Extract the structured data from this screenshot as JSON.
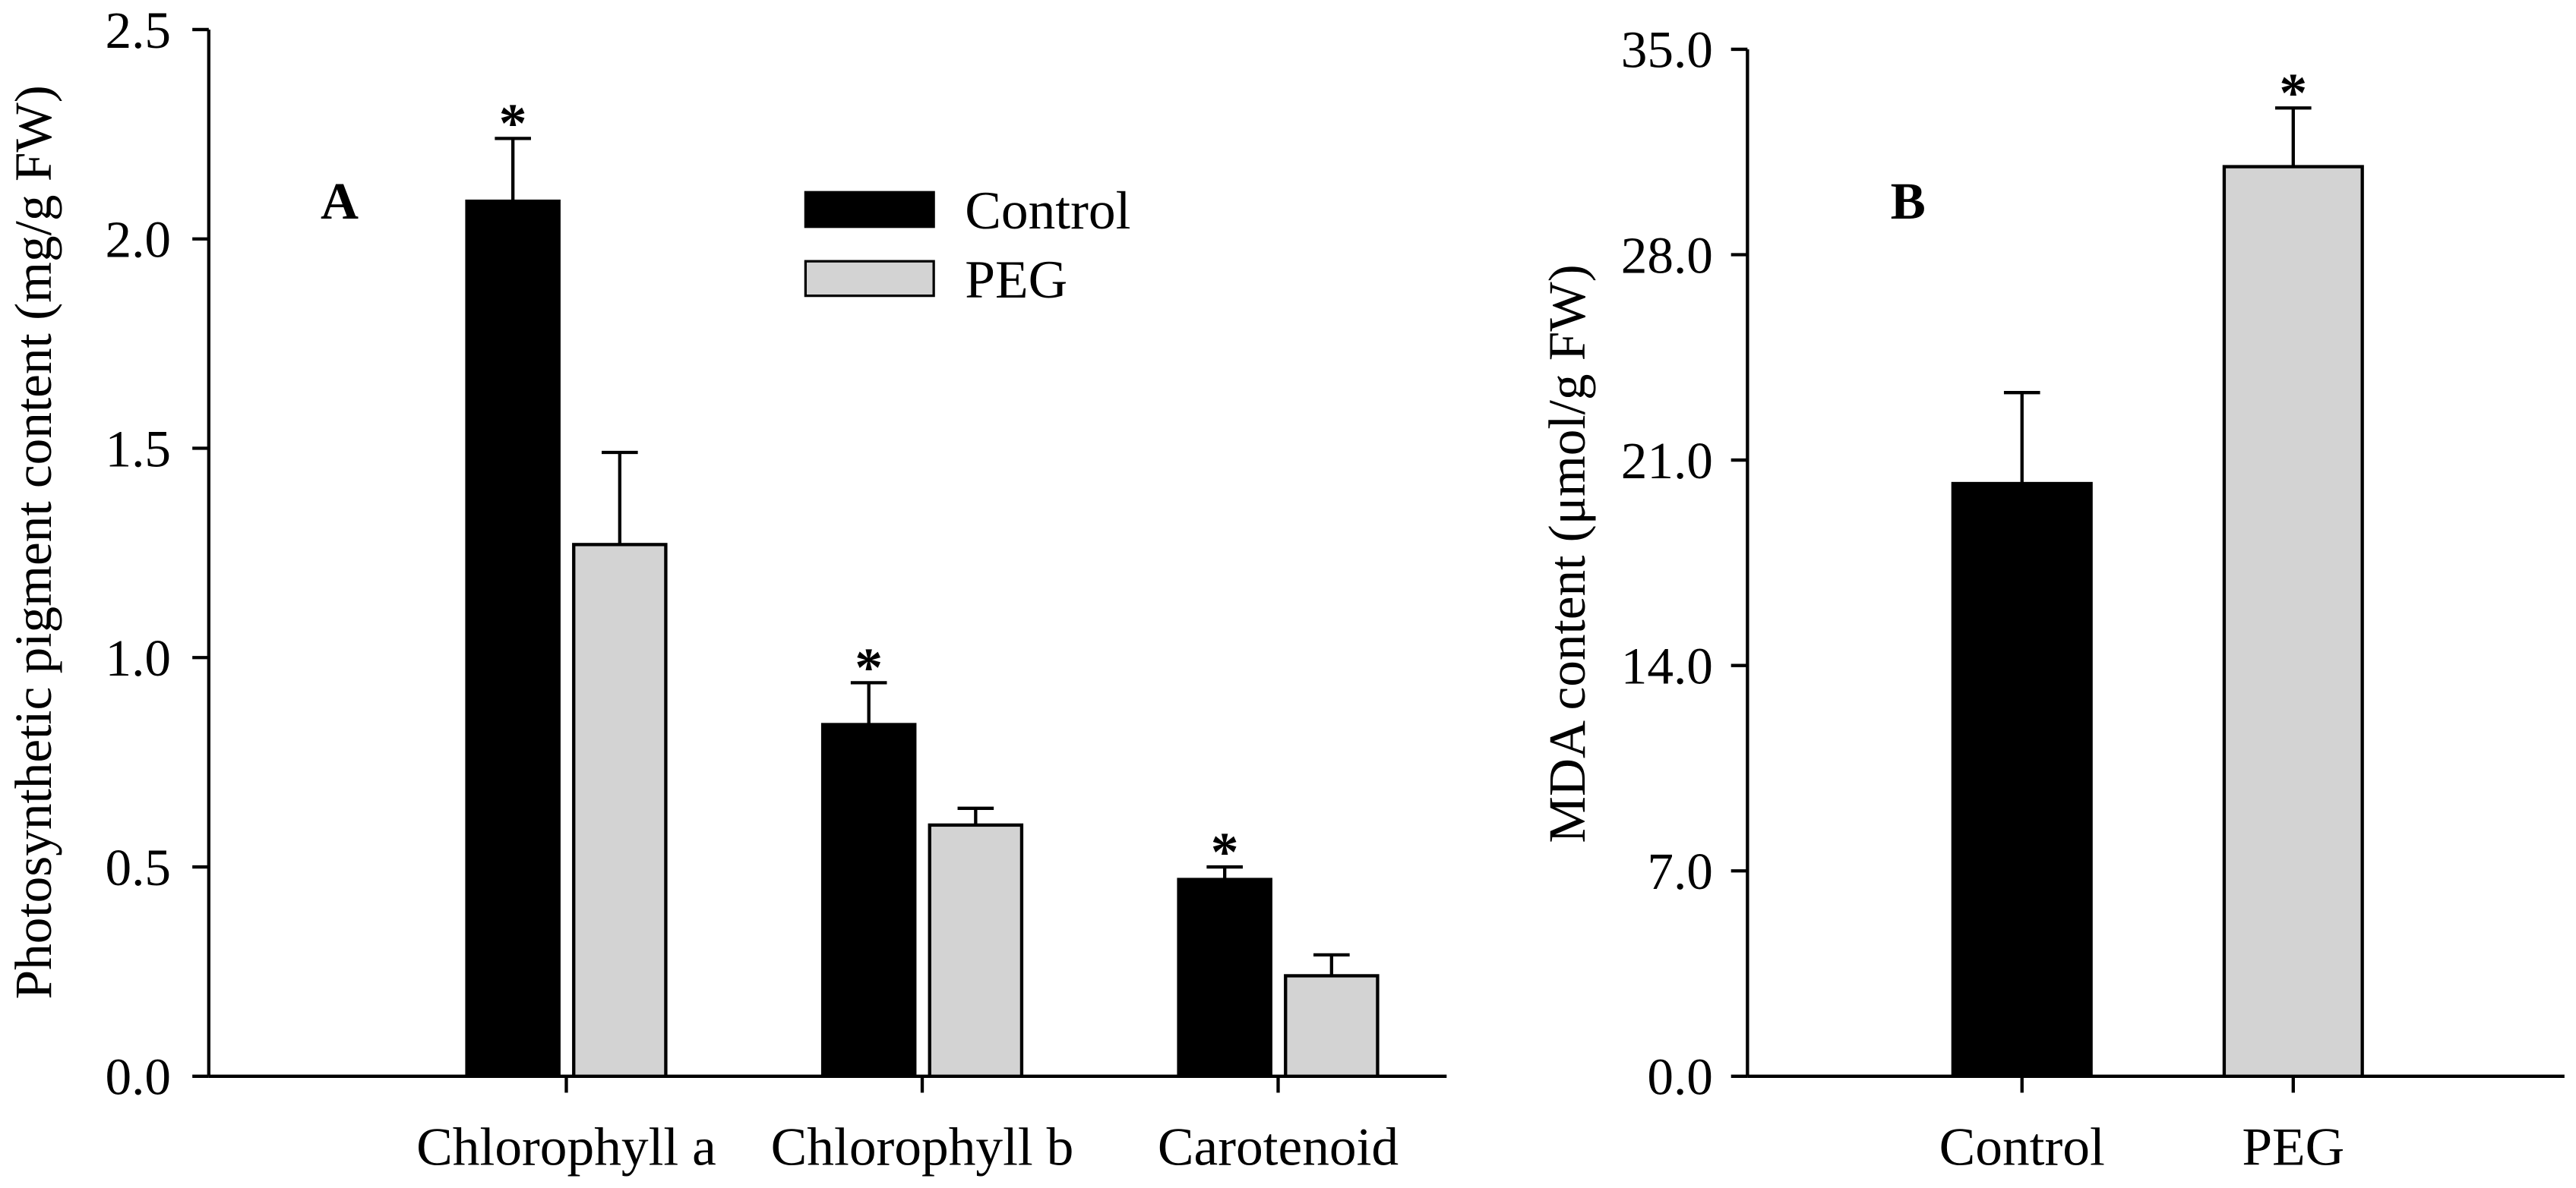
{
  "chart_data": [
    {
      "panel_label": "A",
      "type": "bar",
      "title": "",
      "xlabel": "",
      "ylabel": "Photosynthetic pigment content (mg/g FW)",
      "ylim": [
        0,
        2.5
      ],
      "yticks": [
        "0.0",
        "0.5",
        "1.0",
        "1.5",
        "2.0",
        "2.5"
      ],
      "categories": [
        "Chlorophyll a",
        "Chlorophyll b",
        "Carotenoid"
      ],
      "series": [
        {
          "name": "Control",
          "color": "#000000",
          "values": [
            2.09,
            0.84,
            0.47
          ],
          "error": [
            0.15,
            0.1,
            0.03
          ],
          "significance": [
            "*",
            "*",
            "*"
          ]
        },
        {
          "name": "PEG",
          "color": "#d3d3d3",
          "values": [
            1.27,
            0.6,
            0.24
          ],
          "error": [
            0.22,
            0.04,
            0.05
          ],
          "significance": [
            "",
            "",
            ""
          ]
        }
      ],
      "legend": "top-center",
      "grid": false
    },
    {
      "panel_label": "B",
      "type": "bar",
      "title": "",
      "xlabel": "",
      "ylabel": "MDA content (μmol/g FW)",
      "ylim": [
        0,
        35
      ],
      "yticks": [
        "0.0",
        "7.0",
        "14.0",
        "21.0",
        "28.0",
        "35.0"
      ],
      "categories": [
        "Control",
        "PEG"
      ],
      "values": [
        20.2,
        31.0
      ],
      "error": [
        3.1,
        2.0
      ],
      "significance": [
        "",
        "*"
      ],
      "colors": [
        "#000000",
        "#d3d3d3"
      ],
      "grid": false
    }
  ]
}
